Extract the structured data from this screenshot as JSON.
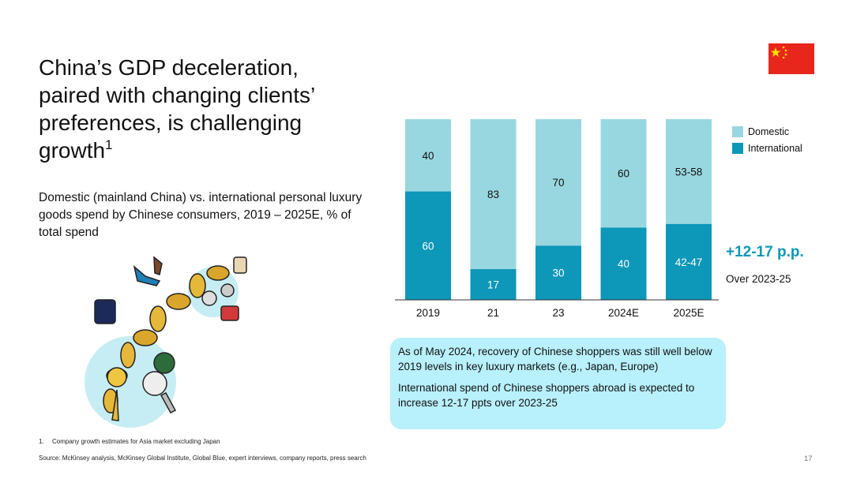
{
  "slide": {
    "title": "China’s GDP deceleration, paired with changing clients’ preferences, is challenging growth",
    "title_sup": "1",
    "subtitle": "Domestic (mainland China) vs. international personal luxury goods spend by Chinese consumers, 2019 – 2025E, % of total spend",
    "delta_value": "+12-17 p.p.",
    "delta_caption": "Over 2023-25",
    "callout_1": "As of May 2024, recovery of Chinese shoppers was still well below 2019 levels in key luxury markets (e.g., Japan, Europe)",
    "callout_2": "International spend of Chinese shoppers abroad is expected to increase 12-17 ppts over 2023-25",
    "footnote_num": "1.",
    "footnote_text": "Company growth estimates for Asia market excluding Japan",
    "source": "Source: McKinsey analysis, McKinsey Global Institute, Global Blue, expert interviews, company reports, press search",
    "page_number": "17"
  },
  "chart_data": {
    "type": "bar",
    "stacked": true,
    "categories": [
      "2019",
      "21",
      "23",
      "2024E",
      "2025E"
    ],
    "series": [
      {
        "name": "International",
        "values": [
          60,
          17,
          30,
          40,
          42
        ],
        "labels": [
          "60",
          "17",
          "30",
          "40",
          "42-47"
        ]
      },
      {
        "name": "Domestic",
        "values": [
          40,
          83,
          70,
          60,
          58
        ],
        "labels": [
          "40",
          "83",
          "70",
          "60",
          "53-58"
        ]
      }
    ],
    "ylim": [
      0,
      100
    ],
    "legend": [
      "Domestic",
      "International"
    ],
    "legend_position": "right",
    "title": "",
    "xlabel": "",
    "ylabel": "",
    "colors": {
      "Domestic": "#99d7e0",
      "International": "#0d97b8"
    }
  },
  "colors": {
    "accent": "#0d97b8",
    "light": "#99d7e0",
    "callout_bg": "#b8f0fb",
    "flag_red": "#e8271c",
    "flag_star": "#ffde00"
  }
}
